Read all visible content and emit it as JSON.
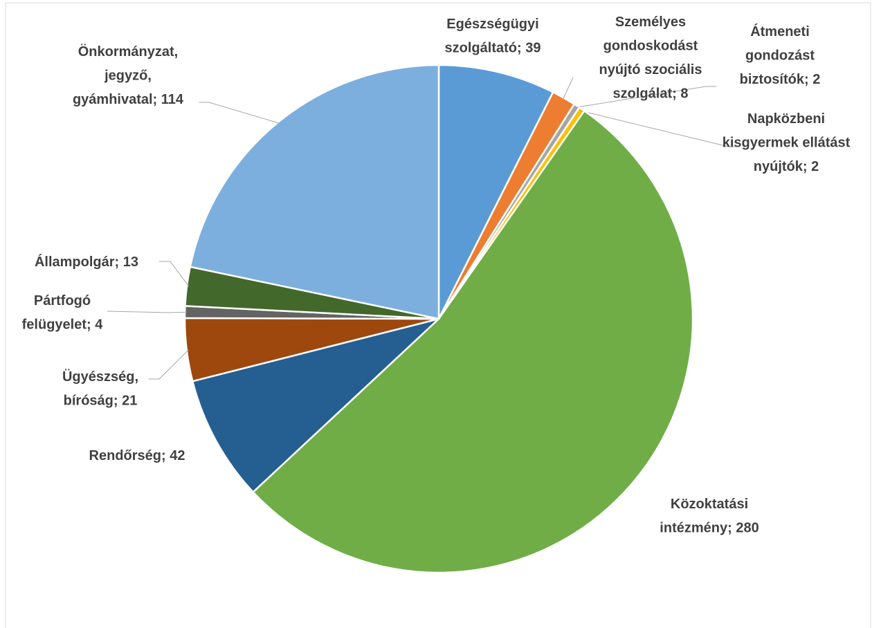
{
  "chart_data": {
    "type": "pie",
    "categories": [
      "Egészségügyi szolgáltató",
      "Személyes gondoskodást nyújtó szociális szolgálat",
      "Átmeneti gondozást biztosítók",
      "Napközbeni kisgyermek ellátást nyújtók",
      "Közoktatási intézmény",
      "Rendőrség",
      "Ügyészség, bíróság",
      "Pártfogó felügyelet",
      "Állampolgár",
      "Önkormányzat, jegyző, gyámhivatal"
    ],
    "values": [
      39,
      8,
      2,
      2,
      280,
      42,
      21,
      4,
      13,
      114
    ],
    "value_labels": [
      "Egészségügyi\nszolgáltató; 39",
      "Személyes\ngondoskodást\nnyújtó szociális\nszolgálat; 8",
      "Átmeneti\ngondozást\nbiztosítók; 2",
      "Napközbeni\nkisgyermek ellátást\nnyújtók; 2",
      "Közoktatási\nintézmény; 280",
      "Rendőrség; 42",
      "Ügyészség,\nbíróság; 21",
      "Pártfogó\nfelügyelet; 4",
      "Állampolgár; 13",
      "Önkormányzat,\njegyző,\ngyámhivatal; 114"
    ],
    "colors": [
      "#5b9bd5",
      "#ed7d31",
      "#a5a5a5",
      "#ffc000",
      "#70ad47",
      "#255e91",
      "#9e480e",
      "#636363",
      "#43682b",
      "#7cafdd"
    ]
  }
}
